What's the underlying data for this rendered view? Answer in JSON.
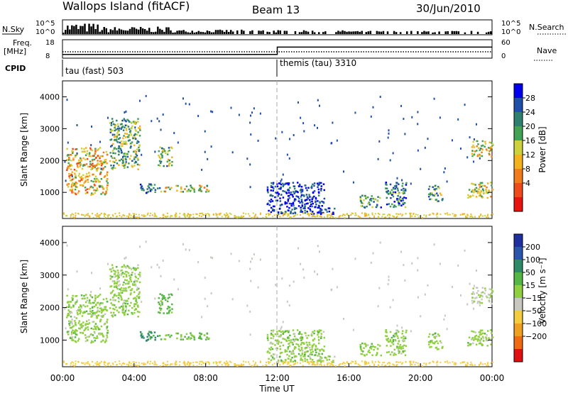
{
  "header": {
    "station": "Wallops Island (fitACF)",
    "beam": "Beam 13",
    "date": "30/Jun/2010"
  },
  "status_panels": {
    "nsky_label": "N.Sky",
    "nsky_ticks": [
      "10^5",
      "10^0"
    ],
    "nsearch_label": "N.Search",
    "freq_label_1": "Freq.",
    "freq_label_2": "[MHz]",
    "freq_ticks": [
      "18",
      "8"
    ],
    "nave_label": "Nave",
    "nave_ticks": [
      "60",
      "0"
    ],
    "cpid_label": "CPID",
    "cpid_modes": [
      {
        "label": "tau (fast) 503",
        "start_hour": 0,
        "end_hour": 12
      },
      {
        "label": "themis (tau) 3310",
        "start_hour": 12,
        "end_hour": 24
      }
    ],
    "freq_step": [
      {
        "hour": 0,
        "mhz": 10
      },
      {
        "hour": 12,
        "mhz": 14
      }
    ]
  },
  "axes": {
    "x_label": "Time UT",
    "x_ticks": [
      "00:00",
      "04:00",
      "08:00",
      "12:00",
      "16:00",
      "20:00",
      "00:00"
    ],
    "x_range_hours": [
      0,
      24
    ],
    "y_label": "Slant Range [km]",
    "y_ticks": [
      "1000",
      "2000",
      "3000",
      "4000"
    ],
    "y_range_km": [
      180,
      4500
    ]
  },
  "colorbars": {
    "power": {
      "label": "Power [dB]",
      "ticks": [
        "28",
        "24",
        "20",
        "16",
        "12",
        "8",
        "4"
      ],
      "colors": [
        "#0000ee",
        "#1f4fa8",
        "#2f7f6f",
        "#44a255",
        "#cdd23c",
        "#f5b21f",
        "#f07c1b",
        "#ee4a1c",
        "#e8140f"
      ]
    },
    "velocity": {
      "label": "Velocity [m s⁻¹]",
      "ticks": [
        "200",
        "100",
        "50",
        "15",
        "−15",
        "−50",
        "−100",
        "−200"
      ],
      "colors": [
        "#1f2fa0",
        "#2a55a8",
        "#2f8a6a",
        "#55b545",
        "#90d040",
        "#c8c8c0",
        "#f5cc40",
        "#f0a020",
        "#ef6a10",
        "#e11010"
      ]
    }
  },
  "chart_data": {
    "type": "heatmap",
    "title": "Wallops Island (fitACF)",
    "panels": [
      {
        "name": "Power [dB]",
        "range": [
          0,
          30
        ]
      },
      {
        "name": "Velocity [m s⁻¹]",
        "range": [
          -200,
          200
        ]
      }
    ],
    "x_unit": "hours UT",
    "y_unit": "km",
    "xlim": [
      0,
      24
    ],
    "ylim": [
      180,
      4500
    ],
    "echo_regions": [
      {
        "t0": 0.2,
        "t1": 2.5,
        "r0": 900,
        "r1": 2400,
        "power": 12,
        "velocity": 0
      },
      {
        "t0": 2.6,
        "t1": 4.3,
        "r0": 1700,
        "r1": 3300,
        "power": 18,
        "velocity": 0
      },
      {
        "t0": 4.3,
        "t1": 5.4,
        "r0": 950,
        "r1": 1250,
        "power": 24,
        "velocity": 60
      },
      {
        "t0": 5.4,
        "t1": 8.2,
        "r0": 1000,
        "r1": 1200,
        "power": 14,
        "velocity": 20
      },
      {
        "t0": 5.3,
        "t1": 6.1,
        "r0": 1800,
        "r1": 2400,
        "power": 17,
        "velocity": 30
      },
      {
        "t0": 11.4,
        "t1": 14.6,
        "r0": 300,
        "r1": 1300,
        "power": 27,
        "velocity": 0
      },
      {
        "t0": 14.6,
        "t1": 15.3,
        "r0": 300,
        "r1": 500,
        "power": 26,
        "velocity": 0
      },
      {
        "t0": 16.6,
        "t1": 17.8,
        "r0": 500,
        "r1": 900,
        "power": 20,
        "velocity": 0
      },
      {
        "t0": 18.0,
        "t1": 19.2,
        "r0": 500,
        "r1": 1300,
        "power": 22,
        "velocity": 0
      },
      {
        "t0": 20.4,
        "t1": 21.2,
        "r0": 700,
        "r1": 1200,
        "power": 19,
        "velocity": 0
      },
      {
        "t0": 22.6,
        "t1": 24.0,
        "r0": 800,
        "r1": 1300,
        "power": 15,
        "velocity": 0
      },
      {
        "t0": 22.8,
        "t1": 24.0,
        "r0": 2100,
        "r1": 2600,
        "power": 14,
        "velocity": -20
      }
    ]
  }
}
